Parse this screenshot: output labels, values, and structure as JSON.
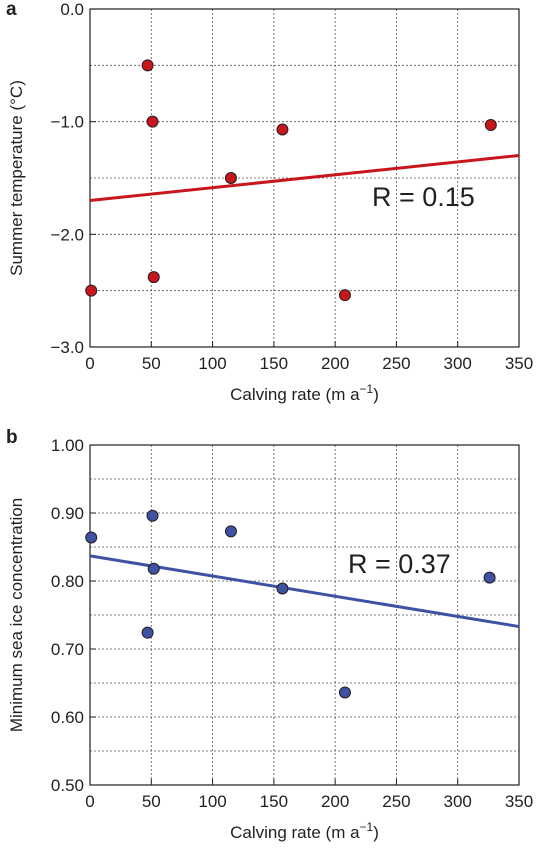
{
  "chart_data": [
    {
      "panel_label": "a",
      "type": "scatter",
      "xlabel": "Calving rate (m a",
      "xlabel_sup": "−1",
      "xlabel_close": ")",
      "ylabel": "Summer temperature (°C)",
      "xlim": [
        0,
        350
      ],
      "ylim": [
        -3.0,
        0.0
      ],
      "xticks": [
        0,
        50,
        100,
        150,
        200,
        250,
        300,
        350
      ],
      "xtick_labels": [
        "0",
        "50",
        "100",
        "150",
        "200",
        "250",
        "300",
        "350"
      ],
      "yticks": [
        0.0,
        -1.0,
        -2.0,
        -3.0
      ],
      "ytick_labels": [
        "0.0",
        "−1.0",
        "−2.0",
        "−3.0"
      ],
      "grid": true,
      "points": [
        {
          "x": 1,
          "y": -2.5
        },
        {
          "x": 47,
          "y": -0.5
        },
        {
          "x": 51,
          "y": -1.0
        },
        {
          "x": 52,
          "y": -2.38
        },
        {
          "x": 115,
          "y": -1.5
        },
        {
          "x": 157,
          "y": -1.07
        },
        {
          "x": 208,
          "y": -2.54
        },
        {
          "x": 327,
          "y": -1.03
        }
      ],
      "trendline": {
        "x": [
          0,
          350
        ],
        "y": [
          -1.7,
          -1.3
        ]
      },
      "annotation": "R = 0.15",
      "marker_color": "#c8161d",
      "line_color": "#c8161d"
    },
    {
      "panel_label": "b",
      "type": "scatter",
      "xlabel": "Calving rate (m a",
      "xlabel_sup": "−1",
      "xlabel_close": ")",
      "ylabel": "Minimum sea ice concentration",
      "xlim": [
        0,
        350
      ],
      "ylim": [
        0.5,
        1.0
      ],
      "xticks": [
        0,
        50,
        100,
        150,
        200,
        250,
        300,
        350
      ],
      "xtick_labels": [
        "0",
        "50",
        "100",
        "150",
        "200",
        "250",
        "300",
        "350"
      ],
      "yticks": [
        1.0,
        0.9,
        0.8,
        0.7,
        0.6,
        0.5
      ],
      "ytick_labels": [
        "1.00",
        "0.90",
        "0.80",
        "0.70",
        "0.60",
        "0.50"
      ],
      "grid": true,
      "points": [
        {
          "x": 1,
          "y": 0.864
        },
        {
          "x": 47,
          "y": 0.724
        },
        {
          "x": 51,
          "y": 0.896
        },
        {
          "x": 52,
          "y": 0.818
        },
        {
          "x": 115,
          "y": 0.873
        },
        {
          "x": 157,
          "y": 0.789
        },
        {
          "x": 208,
          "y": 0.636
        },
        {
          "x": 326,
          "y": 0.805
        }
      ],
      "trendline": {
        "x": [
          0,
          350
        ],
        "y": [
          0.837,
          0.733
        ]
      },
      "annotation": "R = 0.37",
      "marker_color": "#3f51a3",
      "line_color": "#3f51a3"
    }
  ]
}
